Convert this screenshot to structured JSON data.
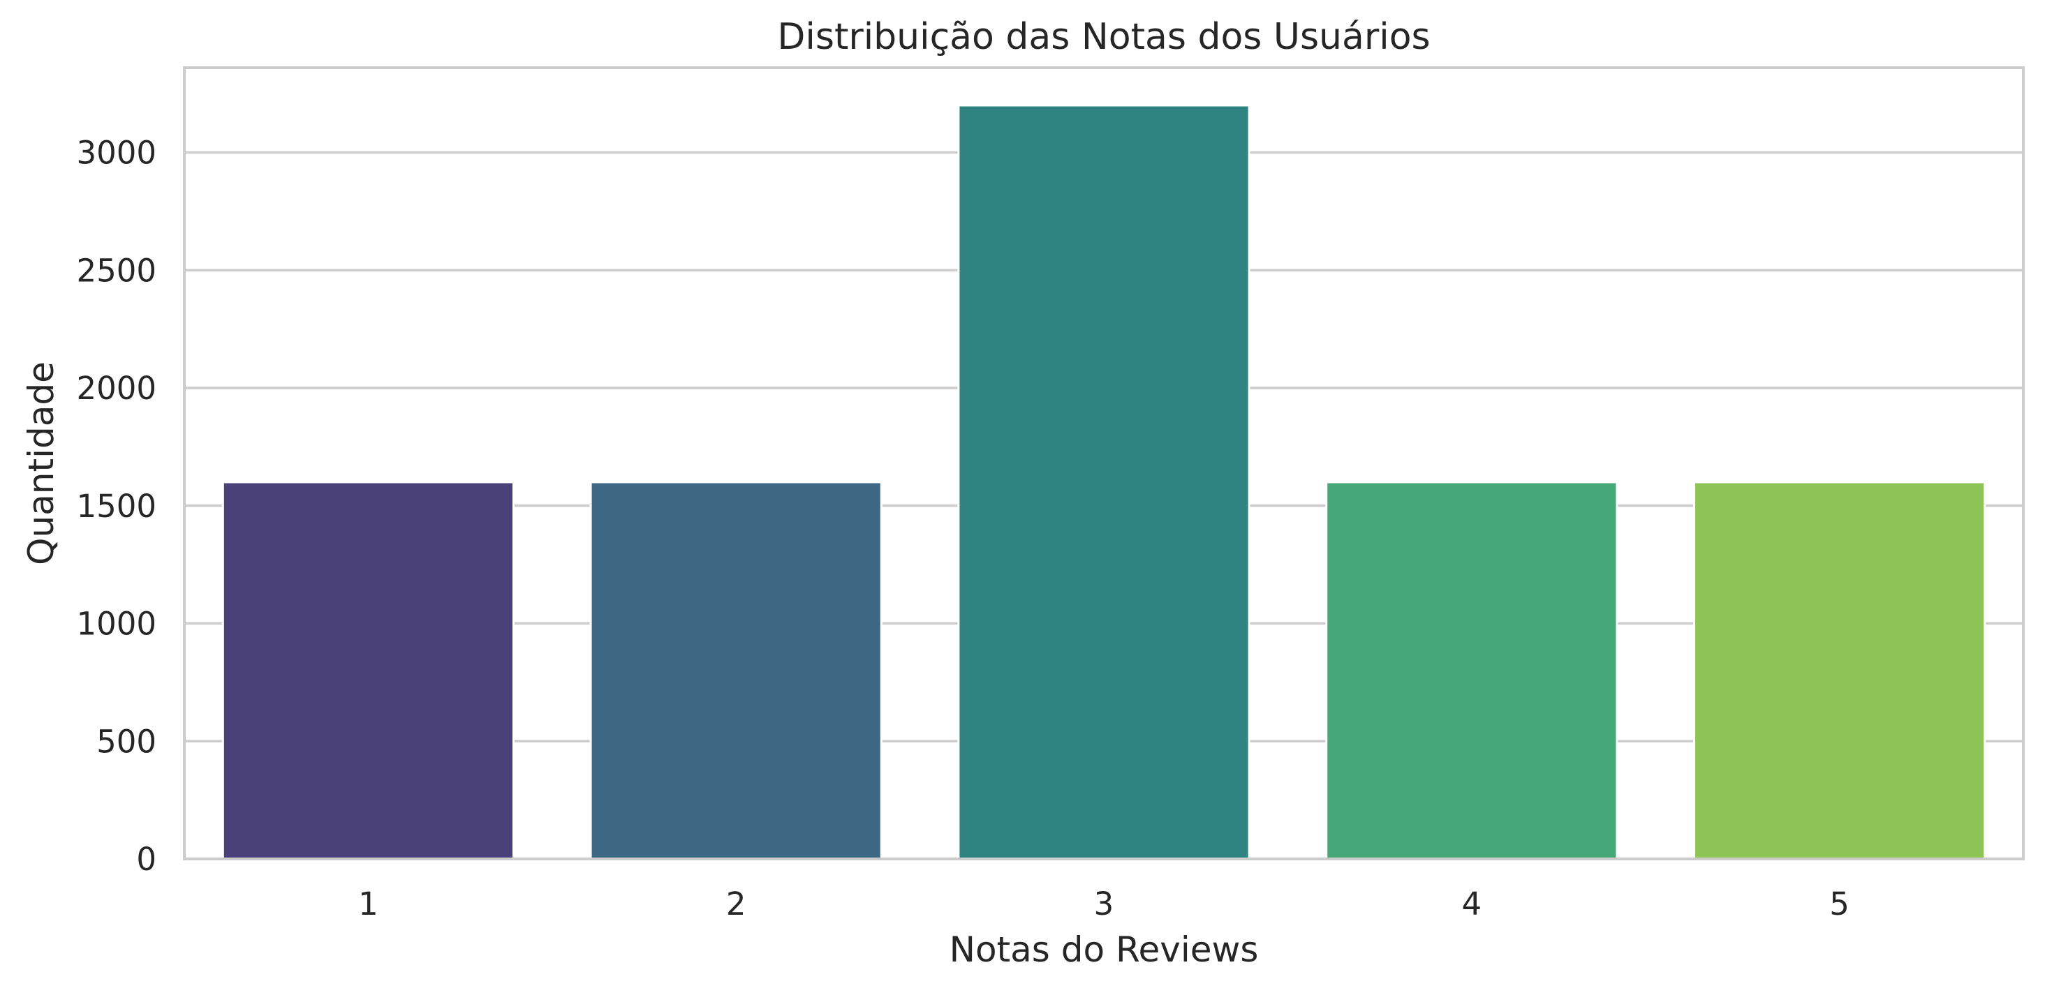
{
  "chart_data": {
    "type": "bar",
    "title": "Distribuição das Notas dos Usuários",
    "xlabel": "Notas do Reviews",
    "ylabel": "Quantidade",
    "categories": [
      "1",
      "2",
      "3",
      "4",
      "5"
    ],
    "values": [
      1600,
      1600,
      3200,
      1600,
      1600
    ],
    "colors": [
      "#4a4179",
      "#3e6783",
      "#2f8380",
      "#46a878",
      "#8ec456"
    ],
    "yticks": [
      0,
      500,
      1000,
      1500,
      2000,
      2500,
      3000
    ],
    "ylim": [
      0,
      3360
    ],
    "grid": "horizontal",
    "style": {
      "background": "#ffffff",
      "grid_color": "#cccccc",
      "spine_color": "#cccccc",
      "text_color": "#262626"
    }
  }
}
